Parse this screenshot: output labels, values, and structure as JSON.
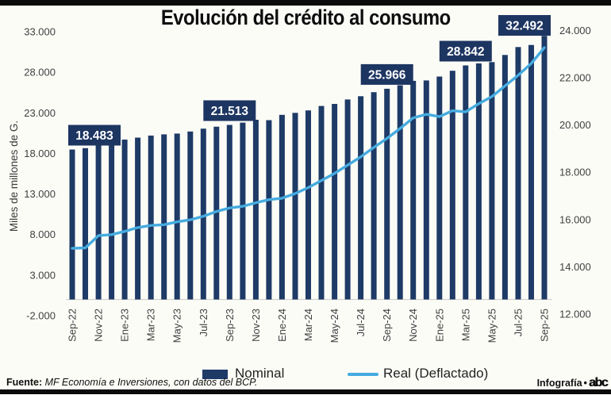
{
  "infographic": {
    "title": "Evolución del crédito al consumo"
  },
  "legend": {
    "nominal": "Nominal",
    "real": "Real (Deflactado)"
  },
  "footer": {
    "source_label": "Fuente:",
    "source_text": " MF Economía e Inversiones, con datos del BCP.",
    "credit_label": "Infografía",
    "bullet": "•",
    "logo_text": "abc"
  },
  "colors": {
    "bar": "#1e3a66",
    "line": "#45abdf",
    "callout_bg": "#1d3561",
    "callout_text": "#ffffff",
    "axis_text": "#3f3f3f",
    "axis_line": "#cfcfcc",
    "frame_rule": "#0b0b0b"
  },
  "chart_data": {
    "type": "bar+line",
    "title": "Evolución del crédito al consumo",
    "ylabel_left": "Miles de millones de G.",
    "grid": "none",
    "legend_position": "bottom",
    "x_tick_every": 2,
    "categories": [
      "Sep-22",
      "Oct-22",
      "Nov-22",
      "Dic-22",
      "Ene-23",
      "Feb-23",
      "Mar-23",
      "Abr-23",
      "May-23",
      "Jun-23",
      "Jul-23",
      "Ago-23",
      "Sep-23",
      "Oct-23",
      "Nov-23",
      "Dic-23",
      "Ene-24",
      "Feb-24",
      "Mar-24",
      "Abr-24",
      "May-24",
      "Jun-24",
      "Jul-24",
      "Ago-24",
      "Sep-24",
      "Oct-24",
      "Nov-24",
      "Dic-24",
      "Ene-25",
      "Feb-25",
      "Mar-25",
      "Abr-25",
      "May-25",
      "Jun-25",
      "Jul-25",
      "Ago-25",
      "Sep-25"
    ],
    "series": [
      {
        "name": "Nominal",
        "type": "bar",
        "axis": "left",
        "values": [
          18483,
          18650,
          19300,
          19250,
          19700,
          19950,
          20200,
          20350,
          20450,
          20700,
          21050,
          21300,
          21513,
          21800,
          22150,
          22100,
          22750,
          23000,
          23300,
          23850,
          24100,
          24650,
          25050,
          25550,
          25966,
          26400,
          26950,
          27000,
          27480,
          28190,
          28842,
          29100,
          29260,
          30140,
          31110,
          31370,
          32492
        ]
      },
      {
        "name": "Real (Deflactado)",
        "type": "line",
        "axis": "right",
        "values": [
          14780,
          14800,
          15320,
          15360,
          15500,
          15660,
          15750,
          15780,
          15900,
          15990,
          16140,
          16340,
          16490,
          16560,
          16710,
          16840,
          16900,
          17100,
          17350,
          17650,
          17950,
          18300,
          18650,
          19050,
          19430,
          19850,
          20300,
          20450,
          20350,
          20600,
          20550,
          20900,
          21200,
          21650,
          22100,
          22600,
          23270
        ]
      }
    ],
    "left_axis": {
      "title": "Miles de millones de G.",
      "min": -2000,
      "max": 33000,
      "ticks": [
        {
          "value": 33000,
          "label": "33.000"
        },
        {
          "value": 28000,
          "label": "28.000"
        },
        {
          "value": 23000,
          "label": "23.000"
        },
        {
          "value": 18000,
          "label": "18.000"
        },
        {
          "value": 13000,
          "label": "13.000"
        },
        {
          "value": 8000,
          "label": "8.000"
        },
        {
          "value": 3000,
          "label": "3.000"
        },
        {
          "value": -2000,
          "label": "-2.000"
        }
      ]
    },
    "right_axis": {
      "min": 12000,
      "max": 24000,
      "ticks": [
        {
          "value": 24000,
          "label": "24.000"
        },
        {
          "value": 22000,
          "label": "22.000"
        },
        {
          "value": 20000,
          "label": "20.000"
        },
        {
          "value": 18000,
          "label": "18.000"
        },
        {
          "value": 16000,
          "label": "16.000"
        },
        {
          "value": 14000,
          "label": "14.000"
        },
        {
          "value": 12000,
          "label": "12.000"
        }
      ]
    },
    "callouts": [
      {
        "index": 0,
        "category": "Sep-22",
        "value": 18483,
        "label": "18.483"
      },
      {
        "index": 12,
        "category": "Sep-23",
        "value": 21513,
        "label": "21.513"
      },
      {
        "index": 24,
        "category": "Sep-24",
        "value": 25966,
        "label": "25.966"
      },
      {
        "index": 30,
        "category": "Mar-25",
        "value": 28842,
        "label": "28.842"
      },
      {
        "index": 36,
        "category": "Sep-25",
        "value": 32492,
        "label": "32.492"
      }
    ]
  }
}
